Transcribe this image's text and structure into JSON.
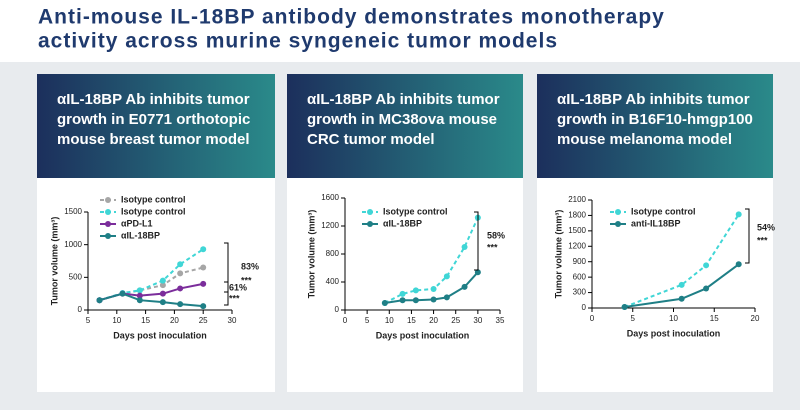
{
  "slide_title": [
    "Anti-mouse IL-18BP antibody demonstrates monotherapy",
    "activity across murine syngeneic tumor models"
  ],
  "chart_data": [
    {
      "type": "line",
      "title": [
        "αIL-18BP Ab inhibits tumor",
        "growth in E0771 orthotopic",
        "mouse breast tumor model"
      ],
      "x_label": "Days post inoculation",
      "y_label": "Tumor volume (mm³)",
      "x": [
        7,
        11,
        14,
        18,
        21,
        25
      ],
      "xlim": [
        5,
        30
      ],
      "xticks": [
        5,
        10,
        15,
        20,
        25,
        30
      ],
      "ylim": [
        0,
        1500
      ],
      "yticks": [
        0,
        500,
        1000,
        1500
      ],
      "series": [
        {
          "name": "Isotype control",
          "color": "#a6a6a6",
          "style": "dashed",
          "values": [
            150,
            250,
            300,
            380,
            560,
            650
          ]
        },
        {
          "name": "Isotype control",
          "color": "#40d6d6",
          "style": "dashed",
          "values": [
            150,
            260,
            300,
            450,
            700,
            930
          ]
        },
        {
          "name": "αPD-L1",
          "color": "#7b2d9b",
          "style": "solid",
          "values": [
            150,
            250,
            220,
            250,
            330,
            400
          ]
        },
        {
          "name": "αIL-18BP",
          "color": "#1f7f86",
          "style": "solid",
          "values": [
            150,
            250,
            150,
            120,
            90,
            60
          ]
        }
      ],
      "annotations": [
        "83%",
        "***",
        "61%",
        "***"
      ]
    },
    {
      "type": "line",
      "title": [
        "αIL-18BP Ab inhibits tumor",
        "growth in MC38ova mouse",
        "CRC tumor model"
      ],
      "x_label": "Days post inoculation",
      "y_label": "Tumor volume (mm³)",
      "x": [
        9,
        13,
        16,
        20,
        23,
        27,
        30
      ],
      "xlim": [
        0,
        35
      ],
      "xticks": [
        0,
        5,
        10,
        15,
        20,
        25,
        30,
        35
      ],
      "ylim": [
        0,
        1600
      ],
      "yticks": [
        0,
        400,
        800,
        1200,
        1600
      ],
      "series": [
        {
          "name": "Isotype control",
          "color": "#40d6d6",
          "style": "dashed",
          "values": [
            100,
            230,
            280,
            300,
            480,
            900,
            1320
          ]
        },
        {
          "name": "αIL-18BP",
          "color": "#1f7f86",
          "style": "solid",
          "values": [
            100,
            140,
            140,
            150,
            180,
            330,
            540
          ]
        }
      ],
      "annotations": [
        "58%",
        "***"
      ]
    },
    {
      "type": "line",
      "title": [
        "αIL-18BP Ab inhibits tumor",
        "growth in B16F10-hmgp100",
        "mouse melanoma model"
      ],
      "x_label": "Days post inoculation",
      "y_label": "Tumor volume (mm³)",
      "x": [
        4,
        11,
        14,
        18
      ],
      "xlim": [
        0,
        20
      ],
      "xticks": [
        0,
        5,
        10,
        15,
        20
      ],
      "ylim": [
        0,
        2100
      ],
      "yticks": [
        0,
        300,
        600,
        900,
        1200,
        1500,
        1800,
        2100
      ],
      "series": [
        {
          "name": "Isotype control",
          "color": "#40d6d6",
          "style": "dashed",
          "values": [
            20,
            450,
            830,
            1820
          ]
        },
        {
          "name": "anti-IL18BP",
          "color": "#1f7f86",
          "style": "solid",
          "values": [
            20,
            180,
            380,
            850
          ]
        }
      ],
      "annotations": [
        "54%",
        "***"
      ]
    }
  ]
}
